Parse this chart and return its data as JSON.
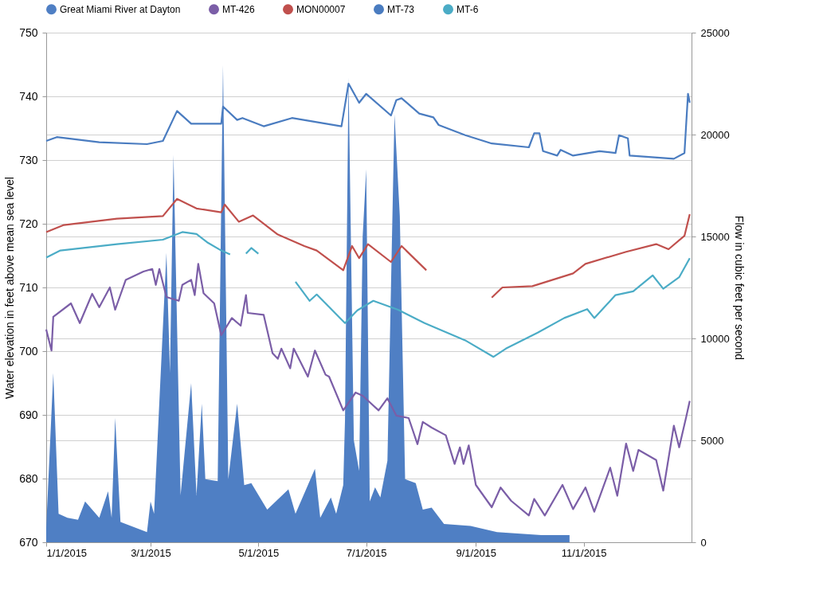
{
  "chart_data": {
    "type": "line",
    "ylabel": "Water elevation in feet above mean sea level",
    "y2label": "Flow in cubic feet per second",
    "xlim": [
      "2015-01-01",
      "2016-01-01"
    ],
    "xticks": [
      {
        "value": "2015-01-01",
        "label": "1/1/2015"
      },
      {
        "value": "2015-03-01",
        "label": "3/1/2015"
      },
      {
        "value": "2015-05-01",
        "label": "5/1/2015"
      },
      {
        "value": "2015-07-01",
        "label": "7/1/2015"
      },
      {
        "value": "2015-09-01",
        "label": "9/1/2015"
      },
      {
        "value": "2015-11-01",
        "label": "11/1/2015"
      }
    ],
    "ylim": [
      670,
      750
    ],
    "yticks": [
      670,
      680,
      690,
      700,
      710,
      720,
      730,
      740,
      750
    ],
    "y2lim": [
      0,
      25000
    ],
    "y2ticks": [
      0,
      5000,
      10000,
      15000,
      20000,
      25000
    ],
    "grid": "y",
    "legend": "top",
    "series": [
      {
        "name": "Great Miami River at Dayton",
        "type": "area",
        "axis": "y2",
        "color": "#4f7fc4",
        "x": [
          "2015-01-01",
          "2015-01-05",
          "2015-01-08",
          "2015-01-13",
          "2015-01-19",
          "2015-01-23",
          "2015-01-31",
          "2015-02-05",
          "2015-02-07",
          "2015-02-09",
          "2015-02-12",
          "2015-02-27",
          "2015-03-01",
          "2015-03-03",
          "2015-03-10",
          "2015-03-12",
          "2015-03-14",
          "2015-03-18",
          "2015-03-24",
          "2015-03-27",
          "2015-03-30",
          "2015-04-01",
          "2015-04-08",
          "2015-04-11",
          "2015-04-14",
          "2015-04-19",
          "2015-04-23",
          "2015-04-27",
          "2015-05-06",
          "2015-05-18",
          "2015-05-22",
          "2015-06-02",
          "2015-06-05",
          "2015-06-11",
          "2015-06-14",
          "2015-06-18",
          "2015-06-19",
          "2015-06-21",
          "2015-06-24",
          "2015-06-27",
          "2015-06-29",
          "2015-07-01",
          "2015-07-03",
          "2015-07-06",
          "2015-07-09",
          "2015-07-13",
          "2015-07-17",
          "2015-07-20",
          "2015-07-23",
          "2015-07-29",
          "2015-08-02",
          "2015-08-07",
          "2015-08-14",
          "2015-08-29",
          "2015-09-13",
          "2015-10-08",
          "2015-10-24"
        ],
        "values": [
          700,
          8300,
          1400,
          1200,
          1100,
          2000,
          1200,
          2500,
          1200,
          6100,
          1000,
          500,
          2000,
          1400,
          14200,
          8300,
          19000,
          2300,
          7800,
          2300,
          6800,
          3100,
          3000,
          23400,
          3100,
          6800,
          2800,
          2900,
          1600,
          2600,
          1400,
          3600,
          1200,
          2200,
          1400,
          2800,
          6000,
          22800,
          5000,
          3500,
          15000,
          18300,
          2000,
          2700,
          2200,
          4000,
          21000,
          16000,
          3100,
          2900,
          1600,
          1700,
          900,
          800,
          500,
          350,
          350
        ]
      },
      {
        "name": "MT-426",
        "color": "#7b5ea7",
        "x": [
          "2015-01-01",
          "2015-01-04",
          "2015-01-05",
          "2015-01-15",
          "2015-01-20",
          "2015-01-27",
          "2015-01-31",
          "2015-02-06",
          "2015-02-09",
          "2015-02-15",
          "2015-02-25",
          "2015-03-02",
          "2015-03-04",
          "2015-03-06",
          "2015-03-10",
          "2015-03-17",
          "2015-03-19",
          "2015-03-24",
          "2015-03-26",
          "2015-03-28",
          "2015-03-31",
          "2015-04-06",
          "2015-04-10",
          "2015-04-16",
          "2015-04-21",
          "2015-04-24",
          "2015-04-25",
          "2015-05-04",
          "2015-05-09",
          "2015-05-12",
          "2015-05-14",
          "2015-05-19",
          "2015-05-21",
          "2015-05-29",
          "2015-06-02",
          "2015-06-08",
          "2015-06-10",
          "2015-06-18",
          "2015-06-25",
          "2015-06-29",
          "2015-07-08",
          "2015-07-13",
          "2015-07-18",
          "2015-07-25",
          "2015-07-30",
          "2015-08-02",
          "2015-08-07",
          "2015-08-15",
          "2015-08-20",
          "2015-08-23",
          "2015-08-25",
          "2015-08-28",
          "2015-09-01",
          "2015-09-10",
          "2015-09-15",
          "2015-09-21",
          "2015-10-01",
          "2015-10-04",
          "2015-10-10",
          "2015-10-20",
          "2015-10-26",
          "2015-11-02",
          "2015-11-07",
          "2015-11-16",
          "2015-11-20",
          "2015-11-25",
          "2015-11-29",
          "2015-12-02",
          "2015-12-12",
          "2015-12-16",
          "2015-12-22",
          "2015-12-25",
          "2015-12-29",
          "2015-12-31"
        ],
        "values": [
          703.4,
          700.1,
          705.4,
          707.5,
          704.4,
          709.0,
          706.9,
          710.0,
          706.5,
          711.2,
          712.5,
          712.9,
          710.4,
          712.9,
          708.5,
          707.9,
          710.4,
          711.2,
          708.8,
          713.7,
          709.1,
          707.5,
          702.5,
          705.2,
          704.0,
          708.8,
          706.0,
          705.7,
          699.7,
          698.8,
          700.4,
          697.3,
          700.4,
          696.0,
          700.1,
          696.3,
          696.0,
          690.7,
          693.5,
          693.0,
          690.7,
          692.6,
          689.9,
          689.5,
          685.4,
          688.9,
          688.0,
          686.8,
          682.3,
          684.9,
          682.3,
          685.2,
          679.0,
          675.5,
          678.6,
          676.5,
          674.2,
          676.8,
          674.2,
          679.0,
          675.2,
          678.6,
          674.8,
          681.7,
          677.3,
          685.5,
          681.2,
          684.5,
          682.9,
          678.1,
          688.3,
          684.9,
          689.7,
          692.2
        ]
      },
      {
        "name": "MON00007",
        "color": "#c0504d",
        "x": [
          "2015-01-01",
          "2015-01-11",
          "2015-02-10",
          "2015-03-08",
          "2015-03-16",
          "2015-03-27",
          "2015-04-10",
          "2015-04-12",
          "2015-04-20",
          "2015-04-28",
          "2015-05-12",
          "2015-05-27",
          "2015-06-03",
          "2015-06-18",
          "2015-06-23",
          "2015-06-27",
          "2015-07-02",
          "2015-07-15",
          "2015-07-21",
          "2015-08-04",
          "2015-08-19",
          "2015-09-10",
          "2015-09-16",
          "2015-10-03",
          "2015-10-26",
          "2015-11-02",
          "2015-11-25",
          "2015-12-12",
          "2015-12-19",
          "2015-12-28",
          "2015-12-31"
        ],
        "values": [
          718.7,
          719.8,
          720.8,
          721.2,
          723.9,
          722.4,
          721.8,
          723.0,
          720.3,
          721.3,
          718.3,
          716.5,
          715.8,
          712.7,
          716.5,
          714.6,
          716.8,
          714.0,
          716.5,
          712.7,
          null,
          708.4,
          710.0,
          710.2,
          712.2,
          713.7,
          715.6,
          716.8,
          716.0,
          718.1,
          721.5
        ]
      },
      {
        "name": "MT-73",
        "color": "#4a7cc0",
        "x": [
          "2015-01-01",
          "2015-01-07",
          "2015-01-31",
          "2015-02-27",
          "2015-03-08",
          "2015-03-16",
          "2015-03-24",
          "2015-04-10",
          "2015-04-11",
          "2015-04-19",
          "2015-04-22",
          "2015-05-04",
          "2015-05-20",
          "2015-06-17",
          "2015-06-21",
          "2015-06-27",
          "2015-07-01",
          "2015-07-15",
          "2015-07-18",
          "2015-07-21",
          "2015-07-31",
          "2015-08-08",
          "2015-08-11",
          "2015-08-26",
          "2015-09-10",
          "2015-10-01",
          "2015-10-04",
          "2015-10-07",
          "2015-10-09",
          "2015-10-17",
          "2015-10-19",
          "2015-10-26",
          "2015-11-10",
          "2015-11-19",
          "2015-11-21",
          "2015-11-26",
          "2015-11-27",
          "2015-12-22",
          "2015-12-28",
          "2015-12-30",
          "2015-12-31"
        ],
        "values": [
          733.0,
          733.6,
          732.8,
          732.5,
          733.0,
          737.7,
          735.7,
          735.7,
          738.4,
          736.3,
          736.6,
          735.3,
          736.6,
          735.3,
          742.0,
          739.0,
          740.4,
          737.0,
          739.4,
          739.7,
          737.3,
          736.7,
          735.5,
          733.9,
          732.6,
          732.0,
          734.2,
          734.2,
          731.4,
          730.7,
          731.6,
          730.7,
          731.4,
          731.1,
          733.9,
          733.4,
          730.7,
          730.2,
          731.1,
          740.4,
          739.0
        ]
      },
      {
        "name": "MT-6",
        "color": "#4bacc6",
        "x": [
          "2015-01-01",
          "2015-01-09",
          "2015-02-10",
          "2015-03-08",
          "2015-03-19",
          "2015-03-27",
          "2015-04-02",
          "2015-04-10",
          "2015-04-15",
          "2015-04-19",
          "2015-04-24",
          "2015-04-27",
          "2015-05-01",
          "2015-05-11",
          "2015-05-22",
          "2015-05-30",
          "2015-06-03",
          "2015-06-19",
          "2015-06-26",
          "2015-07-05",
          "2015-07-19",
          "2015-08-03",
          "2015-08-26",
          "2015-09-11",
          "2015-09-18",
          "2015-10-06",
          "2015-10-21",
          "2015-11-03",
          "2015-11-07",
          "2015-11-19",
          "2015-11-29",
          "2015-12-10",
          "2015-12-16",
          "2015-12-25",
          "2015-12-31"
        ],
        "values": [
          714.7,
          715.8,
          716.8,
          717.5,
          718.7,
          718.4,
          717.1,
          715.8,
          715.2,
          null,
          715.3,
          716.2,
          715.3,
          null,
          710.9,
          707.9,
          708.9,
          704.4,
          706.4,
          707.9,
          706.5,
          704.4,
          701.7,
          699.1,
          700.4,
          702.9,
          705.2,
          706.6,
          705.2,
          708.8,
          709.4,
          711.9,
          709.8,
          711.6,
          714.6
        ]
      }
    ]
  }
}
